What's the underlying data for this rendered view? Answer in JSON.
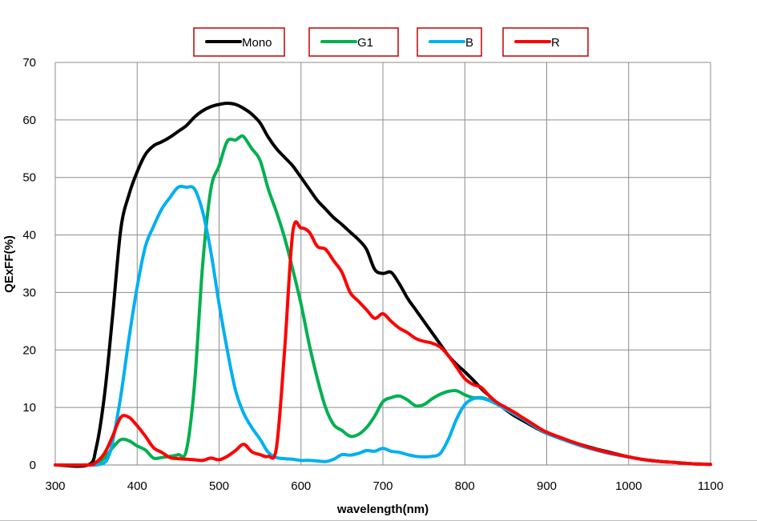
{
  "chart_data": {
    "type": "line",
    "xlabel": "wavelength(nm)",
    "ylabel": "QExFF(%)",
    "xlim": [
      300,
      1100
    ],
    "ylim": [
      0,
      70
    ],
    "xticks": [
      300,
      400,
      500,
      600,
      700,
      800,
      900,
      1000,
      1100
    ],
    "yticks": [
      0,
      10,
      20,
      30,
      40,
      50,
      60,
      70
    ],
    "grid": true,
    "legend_position": "top",
    "series": [
      {
        "name": "Mono",
        "color": "#000000",
        "points": [
          [
            300,
            0
          ],
          [
            340,
            0
          ],
          [
            350,
            3
          ],
          [
            360,
            12
          ],
          [
            370,
            26
          ],
          [
            380,
            41
          ],
          [
            390,
            47
          ],
          [
            400,
            51
          ],
          [
            410,
            54
          ],
          [
            420,
            55.5
          ],
          [
            430,
            56.2
          ],
          [
            440,
            57
          ],
          [
            450,
            58
          ],
          [
            460,
            59
          ],
          [
            470,
            60.5
          ],
          [
            480,
            61.6
          ],
          [
            490,
            62.3
          ],
          [
            500,
            62.7
          ],
          [
            510,
            62.9
          ],
          [
            520,
            62.7
          ],
          [
            530,
            62
          ],
          [
            540,
            61
          ],
          [
            550,
            59.5
          ],
          [
            560,
            57
          ],
          [
            570,
            55
          ],
          [
            580,
            53.5
          ],
          [
            590,
            52
          ],
          [
            600,
            50
          ],
          [
            610,
            48
          ],
          [
            620,
            46
          ],
          [
            630,
            44.5
          ],
          [
            640,
            43
          ],
          [
            650,
            41.8
          ],
          [
            660,
            40.5
          ],
          [
            670,
            39.2
          ],
          [
            680,
            37.5
          ],
          [
            690,
            34
          ],
          [
            700,
            33.3
          ],
          [
            710,
            33.5
          ],
          [
            720,
            31.5
          ],
          [
            730,
            29
          ],
          [
            740,
            27
          ],
          [
            750,
            25
          ],
          [
            760,
            23
          ],
          [
            770,
            21
          ],
          [
            780,
            19
          ],
          [
            790,
            17.5
          ],
          [
            800,
            16.2
          ],
          [
            810,
            14.8
          ],
          [
            820,
            13.3
          ],
          [
            830,
            12
          ],
          [
            840,
            10.7
          ],
          [
            850,
            9.6
          ],
          [
            860,
            8.6
          ],
          [
            870,
            7.8
          ],
          [
            880,
            7
          ],
          [
            890,
            6.2
          ],
          [
            900,
            5.5
          ],
          [
            920,
            4.5
          ],
          [
            940,
            3.6
          ],
          [
            960,
            2.8
          ],
          [
            980,
            2.1
          ],
          [
            1000,
            1.4
          ],
          [
            1020,
            0.9
          ],
          [
            1040,
            0.6
          ],
          [
            1060,
            0.4
          ],
          [
            1080,
            0.2
          ],
          [
            1100,
            0.1
          ]
        ]
      },
      {
        "name": "G1",
        "color": "#00b050",
        "points": [
          [
            300,
            0
          ],
          [
            340,
            0
          ],
          [
            350,
            0.3
          ],
          [
            360,
            1.2
          ],
          [
            370,
            3
          ],
          [
            380,
            4.4
          ],
          [
            390,
            4.2
          ],
          [
            400,
            3.3
          ],
          [
            410,
            2.6
          ],
          [
            420,
            1.2
          ],
          [
            430,
            1.3
          ],
          [
            440,
            1.5
          ],
          [
            450,
            1.8
          ],
          [
            460,
            2.5
          ],
          [
            470,
            14
          ],
          [
            480,
            35
          ],
          [
            490,
            48
          ],
          [
            500,
            52
          ],
          [
            510,
            56.3
          ],
          [
            520,
            56.5
          ],
          [
            525,
            57
          ],
          [
            530,
            57.1
          ],
          [
            540,
            55
          ],
          [
            550,
            53
          ],
          [
            560,
            48
          ],
          [
            570,
            44
          ],
          [
            580,
            39.5
          ],
          [
            590,
            34
          ],
          [
            600,
            28
          ],
          [
            610,
            21
          ],
          [
            620,
            15
          ],
          [
            630,
            10
          ],
          [
            640,
            7
          ],
          [
            650,
            6
          ],
          [
            660,
            5
          ],
          [
            670,
            5.3
          ],
          [
            680,
            6.5
          ],
          [
            690,
            8.5
          ],
          [
            700,
            11
          ],
          [
            710,
            11.7
          ],
          [
            720,
            12
          ],
          [
            730,
            11.3
          ],
          [
            740,
            10.3
          ],
          [
            750,
            10.5
          ],
          [
            760,
            11.5
          ],
          [
            770,
            12.3
          ],
          [
            780,
            12.8
          ],
          [
            790,
            12.9
          ],
          [
            800,
            12.2
          ],
          [
            810,
            11.7
          ],
          [
            820,
            11.7
          ],
          [
            830,
            11.3
          ],
          [
            840,
            10.6
          ],
          [
            850,
            9.8
          ],
          [
            860,
            9
          ],
          [
            870,
            8.2
          ],
          [
            880,
            7.3
          ],
          [
            890,
            6.4
          ],
          [
            900,
            5.6
          ],
          [
            920,
            4.5
          ],
          [
            940,
            3.5
          ],
          [
            960,
            2.7
          ],
          [
            980,
            2
          ],
          [
            1000,
            1.4
          ],
          [
            1020,
            0.9
          ],
          [
            1040,
            0.6
          ],
          [
            1060,
            0.4
          ],
          [
            1080,
            0.2
          ],
          [
            1100,
            0.1
          ]
        ]
      },
      {
        "name": "B",
        "color": "#00b0f0",
        "points": [
          [
            300,
            0
          ],
          [
            340,
            0
          ],
          [
            350,
            0
          ],
          [
            360,
            0.4
          ],
          [
            365,
            1.5
          ],
          [
            370,
            4
          ],
          [
            380,
            12
          ],
          [
            390,
            22
          ],
          [
            400,
            31
          ],
          [
            410,
            38
          ],
          [
            420,
            41.5
          ],
          [
            430,
            44.5
          ],
          [
            440,
            46.5
          ],
          [
            450,
            48.3
          ],
          [
            460,
            48.3
          ],
          [
            470,
            48
          ],
          [
            480,
            44
          ],
          [
            490,
            37
          ],
          [
            500,
            28
          ],
          [
            510,
            20
          ],
          [
            520,
            13
          ],
          [
            530,
            9
          ],
          [
            540,
            6.5
          ],
          [
            550,
            4.5
          ],
          [
            560,
            2.2
          ],
          [
            570,
            1.3
          ],
          [
            580,
            1.1
          ],
          [
            590,
            1
          ],
          [
            600,
            0.8
          ],
          [
            610,
            0.8
          ],
          [
            620,
            0.7
          ],
          [
            630,
            0.6
          ],
          [
            640,
            1
          ],
          [
            650,
            1.8
          ],
          [
            660,
            1.7
          ],
          [
            670,
            2
          ],
          [
            680,
            2.5
          ],
          [
            690,
            2.4
          ],
          [
            700,
            2.9
          ],
          [
            710,
            2.4
          ],
          [
            720,
            2.2
          ],
          [
            730,
            1.8
          ],
          [
            740,
            1.5
          ],
          [
            750,
            1.4
          ],
          [
            760,
            1.5
          ],
          [
            770,
            2
          ],
          [
            780,
            4.5
          ],
          [
            790,
            8
          ],
          [
            800,
            10.5
          ],
          [
            810,
            11.5
          ],
          [
            820,
            11.6
          ],
          [
            830,
            11.2
          ],
          [
            840,
            10.5
          ],
          [
            850,
            9.7
          ],
          [
            860,
            8.9
          ],
          [
            870,
            8.1
          ],
          [
            880,
            7.2
          ],
          [
            890,
            6.3
          ],
          [
            900,
            5.5
          ],
          [
            920,
            4.4
          ],
          [
            940,
            3.4
          ],
          [
            960,
            2.6
          ],
          [
            980,
            1.9
          ],
          [
            1000,
            1.4
          ],
          [
            1020,
            0.9
          ],
          [
            1040,
            0.6
          ],
          [
            1060,
            0.4
          ],
          [
            1080,
            0.2
          ],
          [
            1100,
            0.1
          ]
        ]
      },
      {
        "name": "R",
        "color": "#ff0000",
        "points": [
          [
            300,
            0
          ],
          [
            340,
            0
          ],
          [
            350,
            0.5
          ],
          [
            360,
            2
          ],
          [
            370,
            5
          ],
          [
            380,
            8.3
          ],
          [
            390,
            8.3
          ],
          [
            400,
            6.8
          ],
          [
            410,
            5
          ],
          [
            420,
            3
          ],
          [
            430,
            2.2
          ],
          [
            440,
            1.3
          ],
          [
            450,
            1.1
          ],
          [
            460,
            1
          ],
          [
            470,
            0.9
          ],
          [
            480,
            0.8
          ],
          [
            490,
            1.2
          ],
          [
            500,
            0.9
          ],
          [
            510,
            1.5
          ],
          [
            520,
            2.5
          ],
          [
            530,
            3.6
          ],
          [
            540,
            2.3
          ],
          [
            550,
            1.8
          ],
          [
            560,
            1.5
          ],
          [
            570,
            3
          ],
          [
            580,
            20
          ],
          [
            590,
            40.5
          ],
          [
            600,
            41.2
          ],
          [
            610,
            40.5
          ],
          [
            620,
            38
          ],
          [
            630,
            37.5
          ],
          [
            640,
            35.5
          ],
          [
            650,
            33.5
          ],
          [
            660,
            30
          ],
          [
            670,
            28.5
          ],
          [
            680,
            27
          ],
          [
            690,
            25.5
          ],
          [
            700,
            26.3
          ],
          [
            710,
            25
          ],
          [
            720,
            23.8
          ],
          [
            730,
            23
          ],
          [
            740,
            22
          ],
          [
            750,
            21.5
          ],
          [
            760,
            21.2
          ],
          [
            770,
            20.5
          ],
          [
            780,
            19
          ],
          [
            790,
            17
          ],
          [
            800,
            15
          ],
          [
            810,
            14
          ],
          [
            820,
            13.5
          ],
          [
            830,
            12
          ],
          [
            840,
            10.8
          ],
          [
            850,
            10
          ],
          [
            860,
            9.2
          ],
          [
            870,
            8.3
          ],
          [
            880,
            7.4
          ],
          [
            890,
            6.5
          ],
          [
            900,
            5.7
          ],
          [
            920,
            4.6
          ],
          [
            940,
            3.6
          ],
          [
            960,
            2.7
          ],
          [
            980,
            2
          ],
          [
            1000,
            1.4
          ],
          [
            1020,
            0.9
          ],
          [
            1040,
            0.6
          ],
          [
            1060,
            0.4
          ],
          [
            1080,
            0.2
          ],
          [
            1100,
            0.1
          ]
        ]
      }
    ]
  }
}
